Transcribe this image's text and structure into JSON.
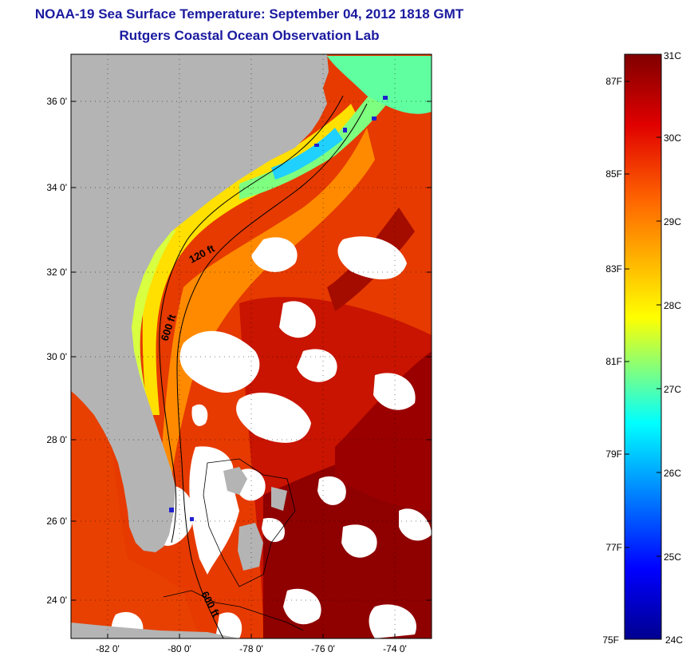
{
  "title": {
    "line1": "NOAA-19 Sea Surface Temperature:  September 04, 2012 1818 GMT",
    "line2": "Rutgers Coastal Ocean Observation Lab"
  },
  "map": {
    "lat_ticks": [
      "36 0'",
      "34 0'",
      "32 0'",
      "30 0'",
      "28 0'",
      "26 0'",
      "24 0'"
    ],
    "lon_ticks": [
      "-82 0'",
      "-80 0'",
      "-78 0'",
      "-76 0'",
      "-74 0'"
    ],
    "contour_labels": [
      "120 ft",
      "600 ft",
      "600 ft"
    ],
    "colors": {
      "land": "#b4b4b4",
      "cloud": "#ffffff"
    }
  },
  "colorbar": {
    "celsius_labels": [
      "31C",
      "30C",
      "29C",
      "28C",
      "27C",
      "26C",
      "25C",
      "24C"
    ],
    "fahrenheit_labels": [
      "87F",
      "85F",
      "83F",
      "81F",
      "79F",
      "77F",
      "75F"
    ],
    "range_c": [
      24,
      31
    ],
    "colormap": [
      "#00008f",
      "#0000ff",
      "#00ffff",
      "#ffff00",
      "#ff0000",
      "#800000"
    ]
  }
}
